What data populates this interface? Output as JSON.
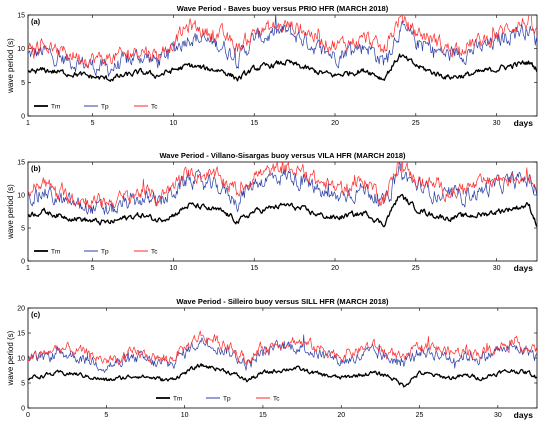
{
  "figure": {
    "x_unit_label": "days",
    "y_axis_label": "wave period (s)"
  },
  "chart_data": [
    {
      "type": "line",
      "title": "Wave Period - Baves buoy versus PRIO HFR (MARCH 2018)",
      "panel_label": "(a)",
      "xlabel": "days",
      "ylabel": "wave period (s)",
      "xlim": [
        1,
        32.5
      ],
      "ylim": [
        0,
        15
      ],
      "x_ticks": [
        1,
        5,
        10,
        15,
        20,
        25,
        30
      ],
      "y_ticks": [
        0,
        5,
        10,
        15
      ],
      "legend_position": "bottom-left",
      "series": [
        {
          "name": "Tm",
          "color": "#000000",
          "x": [
            1,
            2,
            3,
            4,
            5,
            6,
            7,
            8,
            9,
            10,
            11,
            12,
            13,
            14,
            15,
            16,
            17,
            18,
            19,
            20,
            21,
            22,
            23,
            24,
            25,
            26,
            27,
            28,
            29,
            30,
            31,
            32,
            32.5
          ],
          "y": [
            6.5,
            6.8,
            6.5,
            6.2,
            5.8,
            5.5,
            6.0,
            6.5,
            6.0,
            6.8,
            7.5,
            7.0,
            6.8,
            5.5,
            7.0,
            7.5,
            8.0,
            7.2,
            6.5,
            6.0,
            6.5,
            6.8,
            5.5,
            9.0,
            7.5,
            6.5,
            5.8,
            6.0,
            6.5,
            7.0,
            7.5,
            8.0,
            7.0
          ]
        },
        {
          "name": "Tp",
          "color": "#2b3fa6",
          "x": [
            1,
            2,
            3,
            4,
            5,
            6,
            7,
            8,
            9,
            10,
            11,
            12,
            13,
            14,
            15,
            16,
            17,
            18,
            19,
            20,
            21,
            22,
            23,
            24,
            25,
            26,
            27,
            28,
            29,
            30,
            31,
            32,
            32.5
          ],
          "y": [
            9.0,
            9.5,
            8.5,
            8.0,
            7.5,
            7.0,
            8.0,
            9.0,
            8.0,
            10.0,
            12.0,
            11.0,
            10.5,
            8.5,
            11.5,
            12.0,
            12.5,
            11.5,
            10.0,
            9.0,
            10.0,
            10.5,
            8.0,
            13.0,
            11.0,
            10.0,
            9.0,
            9.5,
            10.0,
            11.0,
            12.5,
            13.0,
            11.0
          ]
        },
        {
          "name": "Tc",
          "color": "#ff2a2a",
          "x": [
            1,
            2,
            3,
            4,
            5,
            6,
            7,
            8,
            9,
            10,
            11,
            12,
            13,
            14,
            15,
            16,
            17,
            18,
            19,
            20,
            21,
            22,
            23,
            24,
            25,
            26,
            27,
            28,
            29,
            30,
            31,
            32,
            32.5
          ],
          "y": [
            10.5,
            10.5,
            9.5,
            9.0,
            8.5,
            8.5,
            9.0,
            10.0,
            9.0,
            11.0,
            13.5,
            12.5,
            12.0,
            10.0,
            12.5,
            13.0,
            13.5,
            13.0,
            11.5,
            10.5,
            11.0,
            11.5,
            9.5,
            14.5,
            12.5,
            11.5,
            10.0,
            10.5,
            11.0,
            12.0,
            13.5,
            14.0,
            12.0
          ]
        }
      ]
    },
    {
      "type": "line",
      "title": "Wave Period - Villano-Sisargas buoy versus VILA HFR (MARCH 2018)",
      "panel_label": "(b)",
      "xlabel": "days",
      "ylabel": "wave period (s)",
      "xlim": [
        1,
        32.5
      ],
      "ylim": [
        0,
        15
      ],
      "x_ticks": [
        1,
        5,
        10,
        15,
        20,
        25,
        30
      ],
      "y_ticks": [
        0,
        5,
        10,
        15
      ],
      "legend_position": "bottom-left",
      "series": [
        {
          "name": "Tm",
          "color": "#000000",
          "x": [
            1,
            2,
            3,
            4,
            5,
            6,
            7,
            8,
            9,
            10,
            11,
            12,
            13,
            14,
            15,
            16,
            17,
            18,
            19,
            20,
            21,
            22,
            23,
            24,
            25,
            26,
            27,
            28,
            29,
            30,
            31,
            32,
            32.5
          ],
          "y": [
            7.0,
            7.5,
            6.8,
            6.5,
            6.0,
            5.8,
            6.5,
            7.0,
            6.2,
            7.0,
            8.5,
            8.0,
            7.5,
            6.0,
            7.5,
            8.0,
            8.5,
            7.8,
            7.0,
            6.5,
            7.0,
            7.2,
            5.5,
            10.0,
            8.0,
            7.0,
            6.5,
            6.8,
            7.0,
            7.5,
            8.0,
            8.5,
            5.5
          ]
        },
        {
          "name": "Tp",
          "color": "#2b3fa6",
          "x": [
            1,
            2,
            3,
            4,
            5,
            6,
            7,
            8,
            9,
            10,
            11,
            12,
            13,
            14,
            15,
            16,
            17,
            18,
            19,
            20,
            21,
            22,
            23,
            24,
            25,
            26,
            27,
            28,
            29,
            30,
            31,
            32,
            32.5
          ],
          "y": [
            9.5,
            10.5,
            9.0,
            8.5,
            8.0,
            7.5,
            8.5,
            9.5,
            8.5,
            10.5,
            12.5,
            11.5,
            11.0,
            9.0,
            12.0,
            12.5,
            13.0,
            12.0,
            10.5,
            9.5,
            10.5,
            11.0,
            8.5,
            13.5,
            11.5,
            10.5,
            9.5,
            10.0,
            10.5,
            11.5,
            12.0,
            12.5,
            10.0
          ]
        },
        {
          "name": "Tc",
          "color": "#ff2a2a",
          "x": [
            1,
            2,
            3,
            4,
            5,
            6,
            7,
            8,
            9,
            10,
            11,
            12,
            13,
            14,
            15,
            16,
            17,
            18,
            19,
            20,
            21,
            22,
            23,
            24,
            25,
            26,
            27,
            28,
            29,
            30,
            31,
            32,
            32.5
          ],
          "y": [
            10.5,
            12.0,
            10.0,
            9.5,
            9.0,
            9.0,
            9.5,
            10.5,
            9.5,
            11.5,
            13.5,
            13.0,
            12.5,
            10.5,
            13.0,
            13.5,
            14.0,
            13.5,
            12.0,
            11.0,
            11.5,
            12.0,
            9.5,
            14.5,
            12.5,
            11.5,
            10.5,
            11.0,
            11.5,
            12.5,
            12.5,
            13.0,
            11.0
          ]
        }
      ]
    },
    {
      "type": "line",
      "title": "Wave Period - Silleiro buoy versus SILL HFR (MARCH 2018)",
      "panel_label": "(c)",
      "xlabel": "days",
      "ylabel": "wave period (s)",
      "xlim": [
        0,
        32.5
      ],
      "ylim": [
        0,
        20
      ],
      "x_ticks": [
        0,
        5,
        10,
        15,
        20,
        25,
        30
      ],
      "y_ticks": [
        0,
        5,
        10,
        15,
        20
      ],
      "legend_position": "bottom-center",
      "series": [
        {
          "name": "Tm",
          "color": "#000000",
          "x": [
            0,
            1,
            2,
            3,
            4,
            5,
            6,
            7,
            8,
            9,
            10,
            11,
            12,
            13,
            14,
            15,
            16,
            17,
            18,
            19,
            20,
            21,
            22,
            23,
            24,
            25,
            26,
            27,
            28,
            29,
            30,
            31,
            32,
            32.5
          ],
          "y": [
            6.0,
            6.5,
            7.0,
            6.8,
            6.2,
            5.5,
            6.0,
            6.5,
            6.0,
            5.5,
            7.0,
            8.5,
            8.0,
            7.0,
            5.5,
            7.0,
            7.5,
            8.0,
            7.2,
            6.5,
            6.0,
            6.5,
            7.0,
            6.5,
            4.5,
            7.0,
            6.5,
            6.0,
            6.5,
            6.0,
            7.0,
            7.5,
            7.0,
            6.0
          ]
        },
        {
          "name": "Tp",
          "color": "#2b3fa6",
          "x": [
            0,
            1,
            2,
            3,
            4,
            5,
            6,
            7,
            8,
            9,
            10,
            11,
            12,
            13,
            14,
            15,
            16,
            17,
            18,
            19,
            20,
            21,
            22,
            23,
            24,
            25,
            26,
            27,
            28,
            29,
            30,
            31,
            32,
            32.5
          ],
          "y": [
            9.0,
            10.0,
            11.0,
            10.5,
            9.5,
            8.5,
            9.0,
            10.0,
            9.0,
            8.5,
            11.0,
            13.5,
            12.5,
            11.0,
            8.5,
            11.0,
            12.0,
            12.5,
            11.5,
            10.5,
            9.5,
            10.0,
            11.0,
            10.0,
            9.0,
            11.5,
            11.0,
            10.0,
            10.5,
            10.0,
            11.5,
            12.0,
            11.5,
            10.0
          ]
        },
        {
          "name": "Tc",
          "color": "#ff2a2a",
          "x": [
            0,
            1,
            2,
            3,
            4,
            5,
            6,
            7,
            8,
            9,
            10,
            11,
            12,
            13,
            14,
            15,
            16,
            17,
            18,
            19,
            20,
            21,
            22,
            23,
            24,
            25,
            26,
            27,
            28,
            29,
            30,
            31,
            32,
            32.5
          ],
          "y": [
            10.0,
            11.0,
            12.0,
            11.5,
            10.5,
            9.5,
            10.0,
            11.0,
            10.0,
            9.5,
            12.0,
            14.5,
            13.5,
            12.0,
            9.5,
            12.0,
            13.0,
            13.5,
            12.5,
            11.5,
            10.5,
            11.5,
            12.5,
            11.0,
            9.5,
            12.5,
            12.0,
            11.0,
            11.5,
            11.0,
            12.5,
            13.0,
            12.0,
            11.0
          ]
        }
      ]
    }
  ]
}
